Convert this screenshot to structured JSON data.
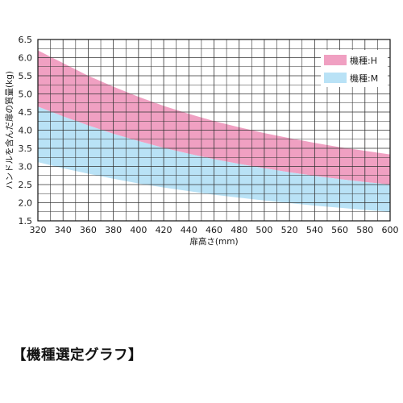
{
  "caption": "【機種選定グラフ】",
  "chart_data": {
    "type": "area",
    "xlabel": "扉高さ(mm)",
    "ylabel": "ハンドルを含んだ扉の質量(kg)",
    "xlim": [
      320,
      600
    ],
    "ylim": [
      1.5,
      6.5
    ],
    "x_ticks": [
      320,
      340,
      360,
      380,
      400,
      420,
      440,
      460,
      480,
      500,
      520,
      540,
      560,
      580,
      600
    ],
    "y_ticks": [
      1.5,
      2.0,
      2.5,
      3.0,
      3.5,
      4.0,
      4.5,
      5.0,
      5.5,
      6.0,
      6.5
    ],
    "grid": true,
    "legend_position": "top-right",
    "x": [
      320,
      340,
      360,
      380,
      400,
      420,
      440,
      460,
      480,
      500,
      520,
      540,
      560,
      580,
      600
    ],
    "series": [
      {
        "name": "機種:H",
        "color": "#f0a0c2",
        "upper": [
          6.2,
          5.85,
          5.5,
          5.2,
          4.92,
          4.67,
          4.45,
          4.25,
          4.08,
          3.92,
          3.78,
          3.65,
          3.53,
          3.43,
          3.33
        ],
        "lower": [
          4.65,
          4.38,
          4.13,
          3.9,
          3.7,
          3.51,
          3.35,
          3.2,
          3.07,
          2.95,
          2.84,
          2.74,
          2.65,
          2.57,
          2.5
        ]
      },
      {
        "name": "機種:M",
        "color": "#b9e2f6",
        "upper": [
          4.65,
          4.38,
          4.13,
          3.9,
          3.7,
          3.51,
          3.35,
          3.2,
          3.07,
          2.95,
          2.84,
          2.74,
          2.65,
          2.57,
          2.5
        ],
        "lower": [
          3.12,
          2.95,
          2.8,
          2.66,
          2.53,
          2.42,
          2.32,
          2.22,
          2.14,
          2.06,
          1.99,
          1.92,
          1.86,
          1.8,
          1.75
        ]
      }
    ]
  }
}
